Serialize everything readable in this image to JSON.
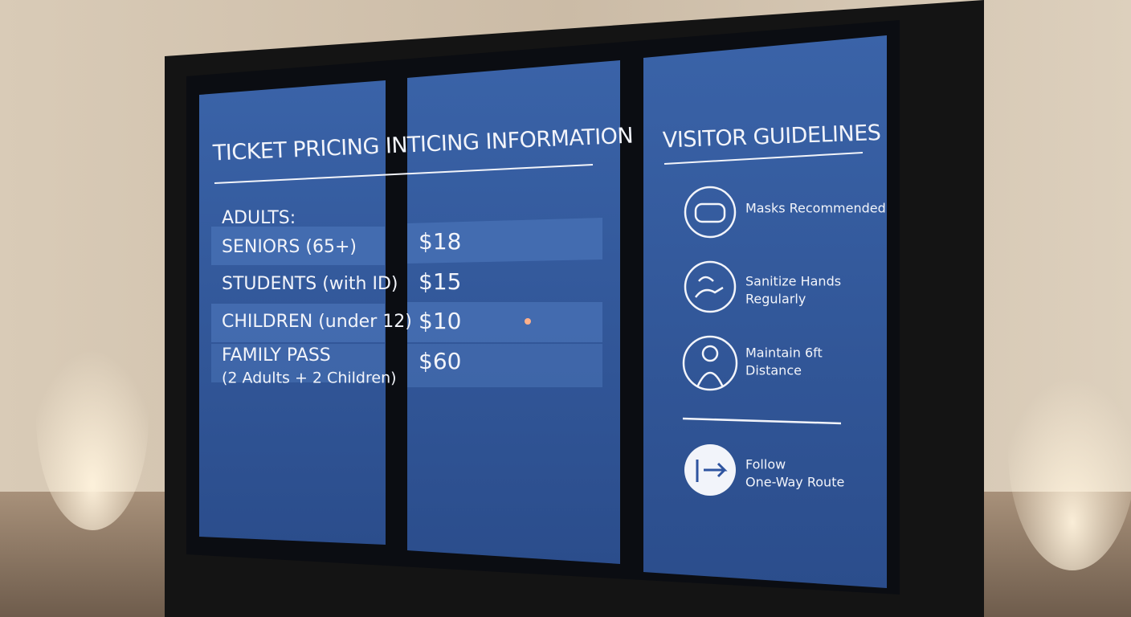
{
  "pricing": {
    "title": "TICKET PRICING INTICING INFORMATION",
    "rows": [
      {
        "label": "ADULTS:"
      },
      {
        "label": "SENIORS (65+)",
        "price": "$18"
      },
      {
        "label": "STUDENTS (with ID)",
        "price": "$15"
      },
      {
        "label": "CHILDREN (under 12)",
        "price": "$10"
      },
      {
        "label": "FAMILY PASS",
        "note": "(2 Adults + 2 Children)",
        "price": "$60"
      }
    ]
  },
  "guidelines": {
    "title": "VISITOR GUIDELINES",
    "items": [
      {
        "lines": [
          "Masks Recommended"
        ]
      },
      {
        "lines": [
          "Sanitize Hands",
          "Regularly"
        ]
      },
      {
        "lines": [
          "Maintain 6ft",
          "Distance"
        ]
      },
      {
        "lines": [
          "Follow",
          "One-Way Route"
        ]
      }
    ]
  }
}
